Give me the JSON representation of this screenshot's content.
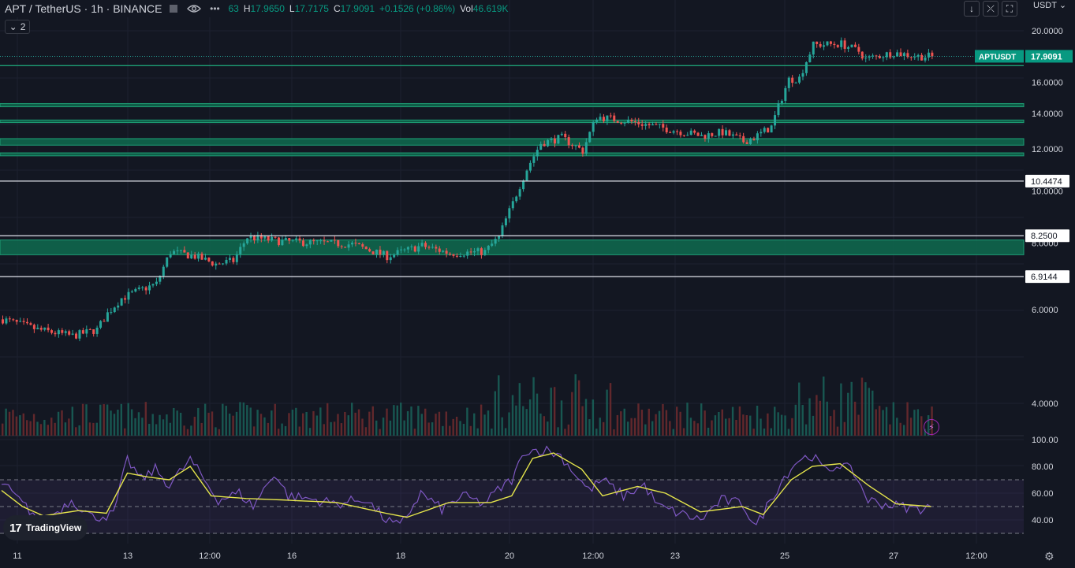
{
  "header": {
    "symbol": "APT / TetherUS · 1h · BINANCE",
    "ohlc_open_partial": "63",
    "high_label": "H",
    "high": "17.9650",
    "low_label": "L",
    "low": "17.7175",
    "close_label": "C",
    "close": "17.9091",
    "change": "+0.1526 (+0.86%)",
    "vol_label": "Vol",
    "vol": "46.619K",
    "collapse_count": "2",
    "currency": "USDT"
  },
  "branding": {
    "logo_text": "TradingView"
  },
  "icons": {
    "hide": "eye-icon",
    "more": "more-dots-icon",
    "flag": "flag-icon",
    "down": "arrow-down-icon",
    "collapse": "collapse-icon",
    "fullscreen": "fullscreen-icon",
    "bolt": "lightning-icon",
    "settings": "gear-icon"
  },
  "chart_data": {
    "type": "candlestick",
    "price_axis": {
      "ticks": [
        "20.0000",
        "16.0000",
        "14.0000",
        "12.0000",
        "10.0000",
        "8.0000",
        "6.0000",
        "4.0000"
      ],
      "scale": "log"
    },
    "time_axis": {
      "labels": [
        "11",
        "13",
        "12:00",
        "16",
        "18",
        "20",
        "12:00",
        "23",
        "25",
        "27",
        "12:00"
      ]
    },
    "price_labels": [
      {
        "text": "APTUSDT",
        "value": "17.9091"
      },
      {
        "text": "10.4474"
      },
      {
        "text": "8.2500"
      },
      {
        "text": "6.9144"
      }
    ],
    "current_price": 17.9091,
    "horizontal_lines": [
      10.4474,
      8.25,
      6.9144
    ],
    "zones": [
      [
        7.6,
        8.1
      ],
      [
        11.65,
        11.8
      ],
      [
        12.2,
        12.55
      ],
      [
        13.45,
        13.6
      ],
      [
        14.4,
        14.6
      ]
    ],
    "support_line": 17.2,
    "price_path": [
      [
        0,
        5.75
      ],
      [
        10,
        5.5
      ],
      [
        20,
        5.35
      ],
      [
        27,
        5.5
      ],
      [
        30,
        5.9
      ],
      [
        34,
        6.3
      ],
      [
        40,
        6.55
      ],
      [
        44,
        6.7
      ],
      [
        48,
        7.7
      ],
      [
        55,
        7.55
      ],
      [
        61,
        7.3
      ],
      [
        66,
        7.4
      ],
      [
        70,
        8.2
      ],
      [
        80,
        8.05
      ],
      [
        90,
        8.0
      ],
      [
        100,
        7.95
      ],
      [
        110,
        7.55
      ],
      [
        120,
        7.9
      ],
      [
        128,
        7.65
      ],
      [
        138,
        7.7
      ],
      [
        142,
        8.2
      ],
      [
        146,
        9.5
      ],
      [
        150,
        11.0
      ],
      [
        154,
        12.3
      ],
      [
        160,
        12.6
      ],
      [
        166,
        11.9
      ],
      [
        170,
        13.8
      ],
      [
        180,
        13.5
      ],
      [
        185,
        13.3
      ],
      [
        190,
        13.1
      ],
      [
        200,
        12.7
      ],
      [
        206,
        12.9
      ],
      [
        212,
        12.4
      ],
      [
        215,
        12.6
      ],
      [
        220,
        13.2
      ],
      [
        225,
        16.2
      ],
      [
        228,
        16.3
      ],
      [
        232,
        18.8
      ],
      [
        240,
        18.9
      ],
      [
        245,
        18.3
      ],
      [
        247,
        17.7
      ],
      [
        255,
        18.2
      ],
      [
        262,
        17.9
      ],
      [
        266,
        17.9091
      ]
    ],
    "rsi": {
      "ticks": [
        "100.00",
        "80.00",
        "60.00",
        "40.00"
      ],
      "upper": 70,
      "lower": 30,
      "mid": 50,
      "ma_path": [
        [
          0,
          62
        ],
        [
          6,
          50
        ],
        [
          12,
          43
        ],
        [
          22,
          47
        ],
        [
          30,
          45
        ],
        [
          36,
          75
        ],
        [
          42,
          72
        ],
        [
          48,
          70
        ],
        [
          54,
          80
        ],
        [
          60,
          58
        ],
        [
          70,
          56
        ],
        [
          80,
          55
        ],
        [
          96,
          53
        ],
        [
          110,
          45
        ],
        [
          116,
          42
        ],
        [
          128,
          53
        ],
        [
          140,
          53
        ],
        [
          146,
          58
        ],
        [
          152,
          86
        ],
        [
          158,
          90
        ],
        [
          166,
          78
        ],
        [
          172,
          58
        ],
        [
          182,
          65
        ],
        [
          190,
          60
        ],
        [
          200,
          46
        ],
        [
          212,
          50
        ],
        [
          218,
          44
        ],
        [
          226,
          70
        ],
        [
          232,
          80
        ],
        [
          240,
          82
        ],
        [
          248,
          66
        ],
        [
          256,
          52
        ],
        [
          266,
          50
        ]
      ],
      "rsi_path": [
        [
          0,
          68
        ],
        [
          6,
          52
        ],
        [
          12,
          38
        ],
        [
          20,
          55
        ],
        [
          26,
          42
        ],
        [
          32,
          44
        ],
        [
          36,
          85
        ],
        [
          40,
          70
        ],
        [
          44,
          78
        ],
        [
          48,
          66
        ],
        [
          54,
          85
        ],
        [
          58,
          70
        ],
        [
          62,
          55
        ],
        [
          68,
          60
        ],
        [
          72,
          50
        ],
        [
          78,
          75
        ],
        [
          82,
          58
        ],
        [
          90,
          55
        ],
        [
          96,
          52
        ],
        [
          104,
          56
        ],
        [
          110,
          40
        ],
        [
          114,
          35
        ],
        [
          120,
          60
        ],
        [
          126,
          48
        ],
        [
          132,
          58
        ],
        [
          138,
          52
        ],
        [
          142,
          62
        ],
        [
          146,
          70
        ],
        [
          150,
          92
        ],
        [
          156,
          92
        ],
        [
          160,
          88
        ],
        [
          164,
          75
        ],
        [
          168,
          62
        ],
        [
          172,
          70
        ],
        [
          178,
          58
        ],
        [
          184,
          66
        ],
        [
          188,
          50
        ],
        [
          194,
          45
        ],
        [
          200,
          40
        ],
        [
          206,
          55
        ],
        [
          212,
          52
        ],
        [
          216,
          35
        ],
        [
          220,
          55
        ],
        [
          224,
          72
        ],
        [
          228,
          85
        ],
        [
          232,
          88
        ],
        [
          236,
          76
        ],
        [
          240,
          82
        ],
        [
          244,
          75
        ],
        [
          248,
          55
        ],
        [
          252,
          52
        ],
        [
          258,
          50
        ],
        [
          262,
          48
        ],
        [
          266,
          50
        ]
      ]
    }
  }
}
